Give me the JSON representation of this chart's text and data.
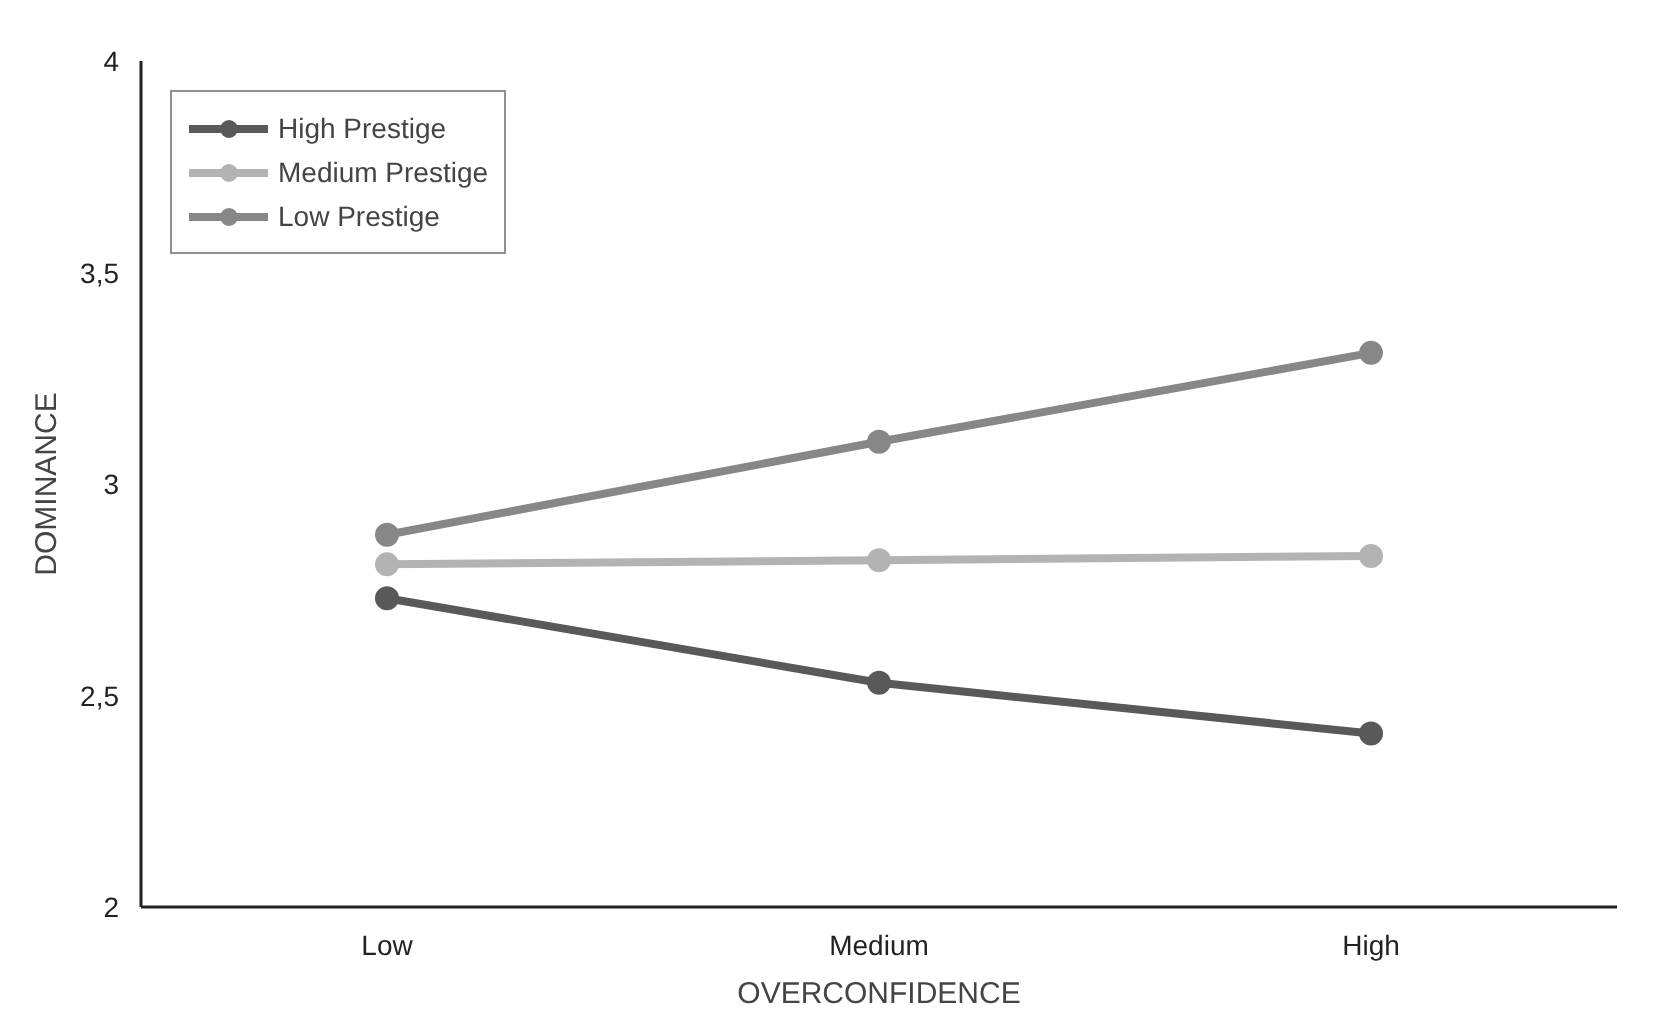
{
  "chart_data": {
    "type": "line",
    "xlabel": "OVERCONFIDENCE",
    "ylabel": "DOMINANCE",
    "categories": [
      "Low",
      "Medium",
      "High"
    ],
    "series": [
      {
        "name": "High Prestige",
        "color": "#595959",
        "values": [
          2.73,
          2.53,
          2.41
        ]
      },
      {
        "name": "Medium Prestige",
        "color": "#b3b3b3",
        "values": [
          2.81,
          2.82,
          2.83
        ]
      },
      {
        "name": "Low Prestige",
        "color": "#878787",
        "values": [
          2.88,
          3.1,
          3.31
        ]
      }
    ],
    "ylim": [
      2,
      4
    ],
    "yticks": [
      2,
      {
        "value": 2.5,
        "label": "2,5"
      },
      3,
      {
        "value": 3.5,
        "label": "3,5"
      },
      4
    ],
    "grid": false,
    "legend": "top left",
    "marker": "circle",
    "line_style": "solid"
  }
}
